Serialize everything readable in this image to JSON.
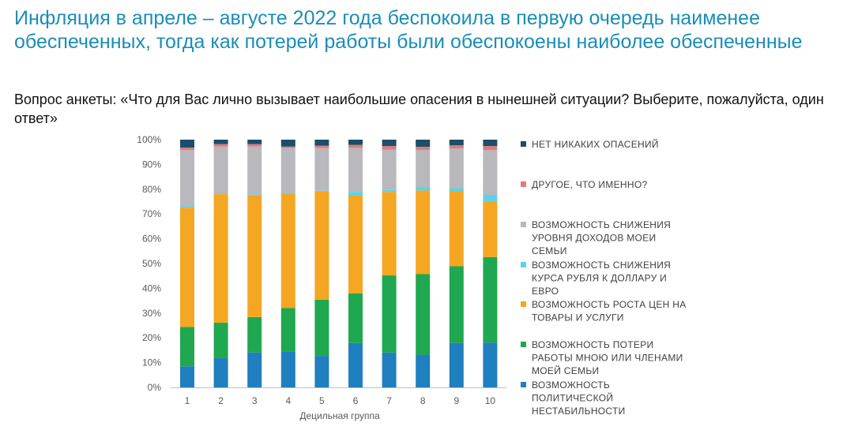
{
  "title": "Инфляция в апреле – августе 2022 года беспокоила в первую очередь наименее обеспеченных, тогда как потерей работы были обеспокоены наиболее обеспеченные",
  "question": "Вопрос анкеты: «Что для Вас лично вызывает наибольшие опасения в нынешней ситуации? Выберите, пожалуйста, один ответ»",
  "chart_data": {
    "type": "bar",
    "stacked": true,
    "percent": true,
    "xlabel": "Децильная группа",
    "ylabel": "",
    "ylim": [
      0,
      100
    ],
    "ytick_labels": [
      "0%",
      "10%",
      "20%",
      "30%",
      "40%",
      "50%",
      "60%",
      "70%",
      "80%",
      "90%",
      "100%"
    ],
    "categories": [
      "1",
      "2",
      "3",
      "4",
      "5",
      "6",
      "7",
      "8",
      "9",
      "10"
    ],
    "legend_position": "right",
    "series": [
      {
        "name": "ВОЗМОЖНОСТЬ ПОЛИТИЧЕСКОЙ НЕСТАБИЛЬНОСТИ",
        "color": "#1f7fbf",
        "values": [
          8.5,
          11.8,
          14.1,
          14.6,
          12.7,
          17.9,
          14.1,
          13.2,
          17.9,
          18.1
        ]
      },
      {
        "name": "ВОЗМОЖНОСТЬ ПОТЕРИ РАБОТЫ МНОЮ ИЛИ ЧЛЕНАМИ МОЕЙ СЕМЬИ",
        "color": "#1fa84f",
        "values": [
          15.9,
          14.3,
          14.3,
          17.4,
          22.7,
          20.0,
          31.1,
          32.5,
          31.0,
          34.5
        ]
      },
      {
        "name": "ВОЗМОЖНОСТЬ РОСТА ЦЕН НА ТОВАРЫ И УСЛУГИ",
        "color": "#f5a623",
        "values": [
          48.1,
          51.9,
          49.2,
          46.3,
          43.6,
          39.5,
          33.7,
          33.8,
          30.4,
          22.4
        ]
      },
      {
        "name": "ВОЗМОЖНОСТЬ СНИЖЕНИЯ КУРСА РУБЛЯ К ДОЛЛАРУ И ЕВРО",
        "color": "#5ad3ea",
        "values": [
          0.6,
          0.2,
          0.3,
          0.3,
          0.4,
          1.5,
          0.8,
          1.4,
          1.1,
          2.7
        ]
      },
      {
        "name": "ВОЗМОЖНОСТЬ СНИЖЕНИЯ УРОВНЯ ДОХОДОВ МОЕИ СЕМЬИ",
        "color": "#b8b8bd",
        "values": [
          22.7,
          19.0,
          19.4,
          18.0,
          17.2,
          17.8,
          16.3,
          14.9,
          16.1,
          18.1
        ]
      },
      {
        "name": "ДРУГОЕ, ЧТО ИМЕННО?",
        "color": "#e07b7b",
        "values": [
          1.0,
          1.0,
          0.9,
          0.6,
          1.0,
          1.2,
          1.4,
          1.3,
          1.2,
          1.6
        ]
      },
      {
        "name": "НЕТ НИКАКИХ ОПАСЕНИЙ",
        "color": "#1b4e6b",
        "values": [
          3.2,
          1.8,
          1.8,
          2.8,
          2.4,
          2.1,
          2.6,
          2.9,
          2.3,
          2.6
        ]
      }
    ],
    "legend_lines": [
      [
        "НЕТ НИКАКИХ ОПАСЕНИЙ"
      ],
      [
        "ДРУГОЕ, ЧТО ИМЕННО?"
      ],
      [
        "ВОЗМОЖНОСТЬ СНИЖЕНИЯ",
        "УРОВНЯ ДОХОДОВ МОЕИ",
        "СЕМЬИ"
      ],
      [
        "ВОЗМОЖНОСТЬ СНИЖЕНИЯ",
        "КУРСА РУБЛЯ К ДОЛЛАРУ И",
        "ЕВРО"
      ],
      [
        "ВОЗМОЖНОСТЬ РОСТА ЦЕН НА",
        "ТОВАРЫ И УСЛУГИ"
      ],
      [
        "ВОЗМОЖНОСТЬ ПОТЕРИ",
        "РАБОТЫ МНОЮ ИЛИ ЧЛЕНАМИ",
        "МОЕЙ СЕМЬИ"
      ],
      [
        "ВОЗМОЖНОСТЬ",
        "ПОЛИТИЧЕСКОЙ",
        "НЕСТАБИЛЬНОСТИ"
      ]
    ]
  }
}
